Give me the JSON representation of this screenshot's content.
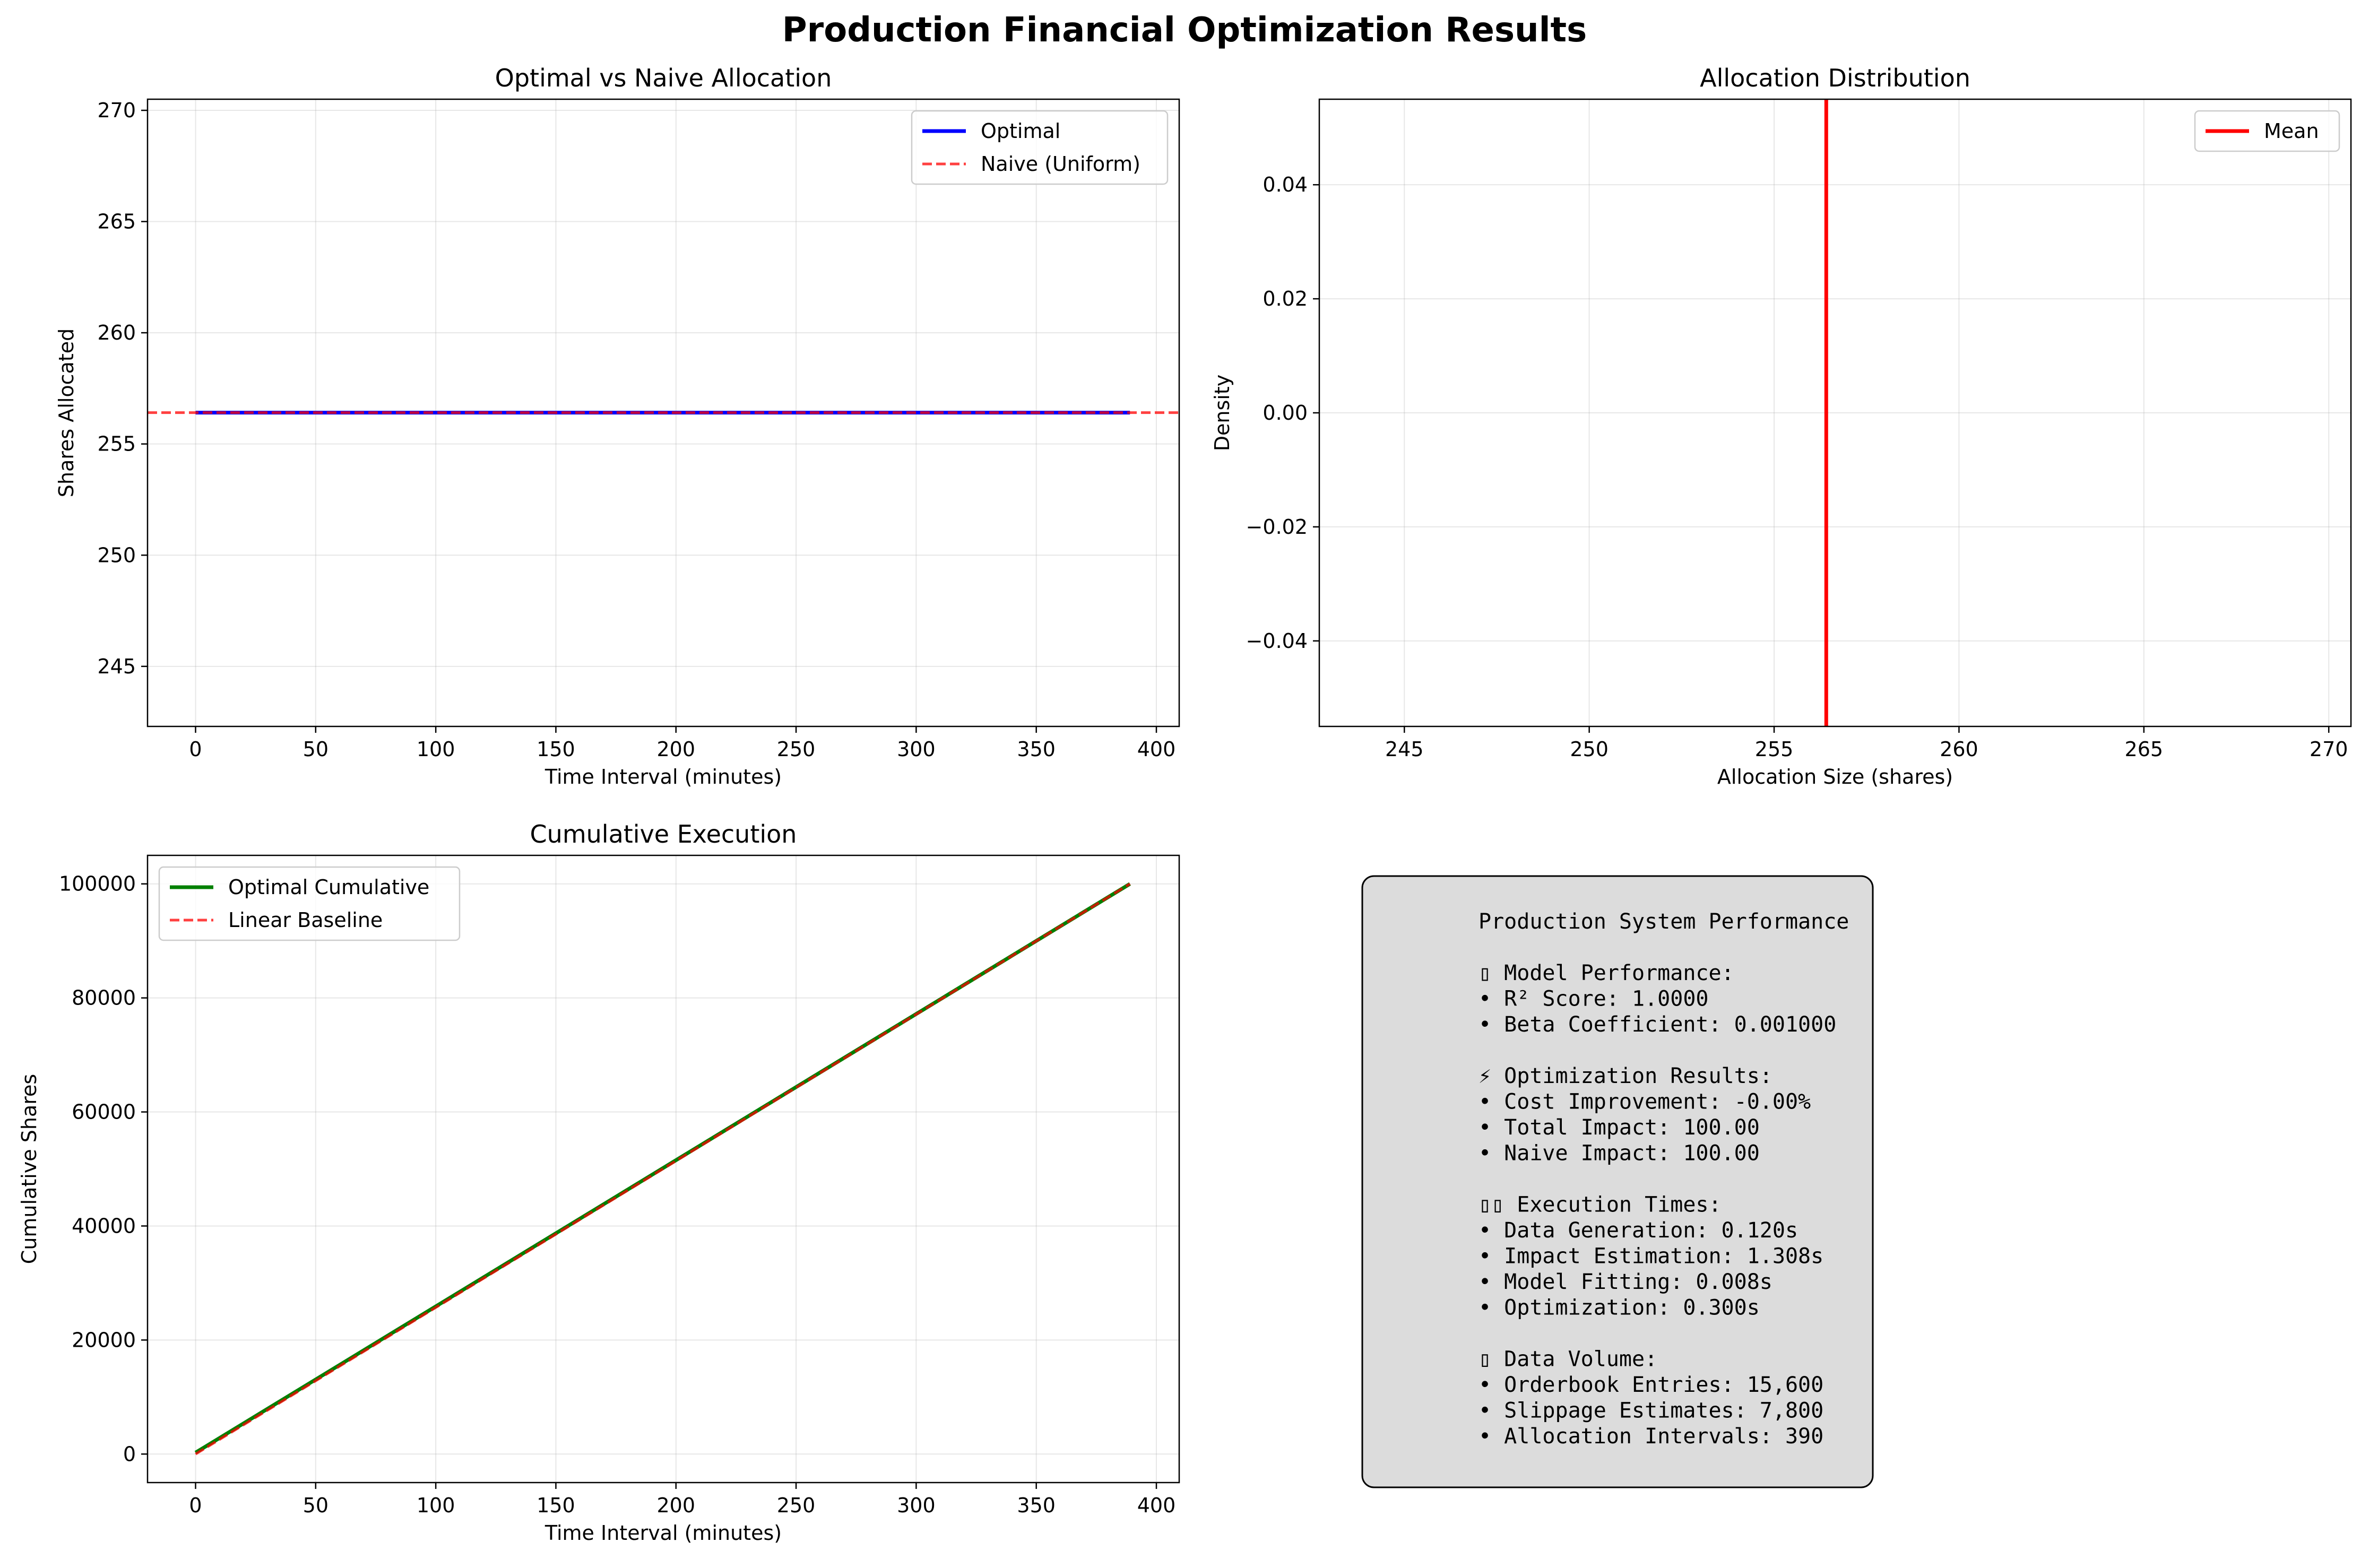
{
  "figure": {
    "suptitle": "Production Financial Optimization Results"
  },
  "chart_data": [
    {
      "id": "alloc",
      "type": "line",
      "title": "Optimal vs Naive Allocation",
      "xlabel": "Time Interval (minutes)",
      "ylabel": "Shares Allocated",
      "xlim": [
        -20,
        409.5
      ],
      "ylim": [
        242.3,
        270.5
      ],
      "xticks": [
        0,
        50,
        100,
        150,
        200,
        250,
        300,
        350,
        400
      ],
      "yticks": [
        245,
        250,
        255,
        260,
        265,
        270
      ],
      "grid": true,
      "legend": "upper right",
      "series": [
        {
          "name": "Optimal",
          "style": "solid",
          "color": "#0000ff",
          "x": [
            0,
            389
          ],
          "y": [
            256.41,
            256.41
          ]
        },
        {
          "name": "Naive (Uniform)",
          "style": "dashed",
          "color": "#ff0000",
          "hline": 256.41
        }
      ]
    },
    {
      "id": "dist",
      "type": "line",
      "title": "Allocation Distribution",
      "xlabel": "Allocation Size (shares)",
      "ylabel": "Density",
      "xlim": [
        242.7,
        270.6
      ],
      "ylim": [
        -0.055,
        0.055
      ],
      "xticks": [
        245,
        250,
        255,
        260,
        265,
        270
      ],
      "yticks": [
        -0.04,
        -0.02,
        0.0,
        0.02,
        0.04
      ],
      "ytick_labels": [
        "−0.04",
        "−0.02",
        "0.00",
        "0.02",
        "0.04"
      ],
      "grid": true,
      "legend": "upper right",
      "series": [
        {
          "name": "Mean",
          "style": "solid",
          "color": "#ff0000",
          "vline": 256.41
        }
      ]
    },
    {
      "id": "cum",
      "type": "line",
      "title": "Cumulative Execution",
      "xlabel": "Time Interval (minutes)",
      "ylabel": "Cumulative Shares",
      "xlim": [
        -20,
        409.5
      ],
      "ylim": [
        -5000,
        105000
      ],
      "xticks": [
        0,
        50,
        100,
        150,
        200,
        250,
        300,
        350,
        400
      ],
      "yticks": [
        0,
        20000,
        40000,
        60000,
        80000,
        100000
      ],
      "grid": true,
      "legend": "upper left",
      "series": [
        {
          "name": "Optimal Cumulative",
          "style": "solid",
          "color": "#008000",
          "x": [
            0,
            389
          ],
          "y": [
            256.41,
            100000
          ]
        },
        {
          "name": "Linear Baseline",
          "style": "dashed",
          "color": "#ff0000",
          "x": [
            0,
            389
          ],
          "y": [
            0,
            100000
          ]
        }
      ]
    }
  ],
  "summary": {
    "title": "Production System Performance",
    "lines": [
      "",
      "▯ Model Performance:",
      "• R² Score: 1.0000",
      "• Beta Coefficient: 0.001000",
      "",
      "⚡ Optimization Results:",
      "• Cost Improvement: -0.00%",
      "• Total Impact: 100.00",
      "• Naive Impact: 100.00",
      "",
      "▯▯ Execution Times:",
      "• Data Generation: 0.120s",
      "• Impact Estimation: 1.308s",
      "• Model Fitting: 0.008s",
      "• Optimization: 0.300s",
      "",
      "▯ Data Volume:",
      "• Orderbook Entries: 15,600",
      "• Slippage Estimates: 7,800",
      "• Allocation Intervals: 390"
    ]
  }
}
